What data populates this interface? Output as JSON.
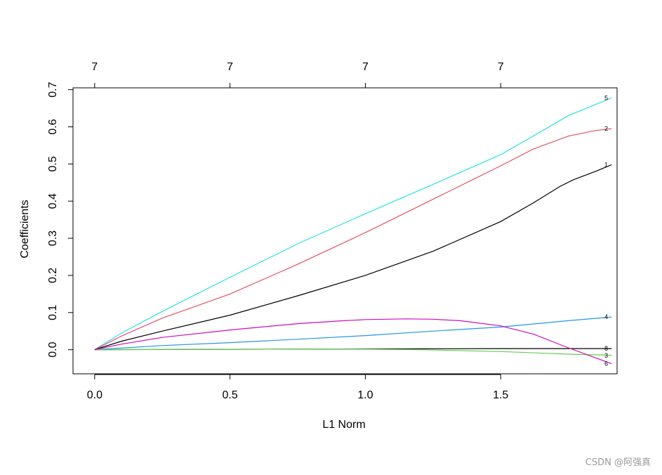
{
  "chart_data": {
    "type": "line",
    "xlabel": "L1 Norm",
    "ylabel": "Coefficients",
    "xlim": [
      -0.08,
      1.93
    ],
    "ylim": [
      -0.065,
      0.705
    ],
    "x_ticks": [
      0.0,
      0.5,
      1.0,
      1.5
    ],
    "x_tick_labels": [
      "0.0",
      "0.5",
      "1.0",
      "1.5"
    ],
    "y_ticks": [
      0.0,
      0.1,
      0.2,
      0.3,
      0.4,
      0.5,
      0.6,
      0.7
    ],
    "y_tick_labels": [
      "0.0",
      "0.1",
      "0.2",
      "0.3",
      "0.4",
      "0.5",
      "0.6",
      "0.7"
    ],
    "top_axis": {
      "ticks": [
        0.0,
        0.5,
        1.0,
        1.5
      ],
      "labels": [
        "7",
        "7",
        "7",
        "7"
      ]
    },
    "grid": false,
    "legend": "none",
    "series": [
      {
        "name": "5",
        "color": "#28e2e5",
        "x": [
          0,
          0.1,
          0.25,
          0.5,
          0.75,
          1.0,
          1.25,
          1.5,
          1.62,
          1.75,
          1.91
        ],
        "y": [
          0,
          0.045,
          0.103,
          0.195,
          0.285,
          0.366,
          0.445,
          0.525,
          0.575,
          0.63,
          0.678
        ]
      },
      {
        "name": "2",
        "color": "#df536b",
        "x": [
          0,
          0.1,
          0.25,
          0.5,
          0.75,
          1.0,
          1.25,
          1.5,
          1.62,
          1.75,
          1.85,
          1.91
        ],
        "y": [
          0,
          0.037,
          0.085,
          0.15,
          0.23,
          0.315,
          0.405,
          0.495,
          0.54,
          0.575,
          0.59,
          0.595
        ]
      },
      {
        "name": "1",
        "color": "#000000",
        "x": [
          0,
          0.1,
          0.25,
          0.5,
          0.75,
          1.0,
          1.25,
          1.5,
          1.62,
          1.72,
          1.77,
          1.85,
          1.91
        ],
        "y": [
          0,
          0.023,
          0.05,
          0.093,
          0.145,
          0.2,
          0.265,
          0.345,
          0.395,
          0.44,
          0.458,
          0.48,
          0.498
        ]
      },
      {
        "name": "4",
        "color": "#2297e6",
        "x": [
          0,
          0.25,
          0.5,
          0.75,
          1.0,
          1.25,
          1.5,
          1.75,
          1.91
        ],
        "y": [
          0,
          0.011,
          0.019,
          0.028,
          0.038,
          0.05,
          0.061,
          0.078,
          0.088
        ]
      },
      {
        "name": "8",
        "color": "#000000",
        "x": [
          0,
          0.5,
          1.0,
          1.5,
          1.91
        ],
        "y": [
          0,
          0.001,
          0.002,
          0.003,
          0.003
        ]
      },
      {
        "name": "3",
        "color": "#61d04f",
        "x": [
          0,
          0.5,
          0.9,
          1.2,
          1.5,
          1.75,
          1.91
        ],
        "y": [
          0,
          0.001,
          0.002,
          0.0,
          -0.005,
          -0.012,
          -0.015
        ]
      },
      {
        "name": "6",
        "color": "#cd0bbc",
        "x": [
          0,
          0.1,
          0.25,
          0.5,
          0.75,
          0.9,
          1.0,
          1.15,
          1.25,
          1.35,
          1.5,
          1.62,
          1.75,
          1.91
        ],
        "y": [
          0,
          0.015,
          0.033,
          0.053,
          0.07,
          0.077,
          0.081,
          0.083,
          0.082,
          0.078,
          0.064,
          0.042,
          0.005,
          -0.038
        ]
      }
    ]
  },
  "watermark": "CSDN @阿强真"
}
